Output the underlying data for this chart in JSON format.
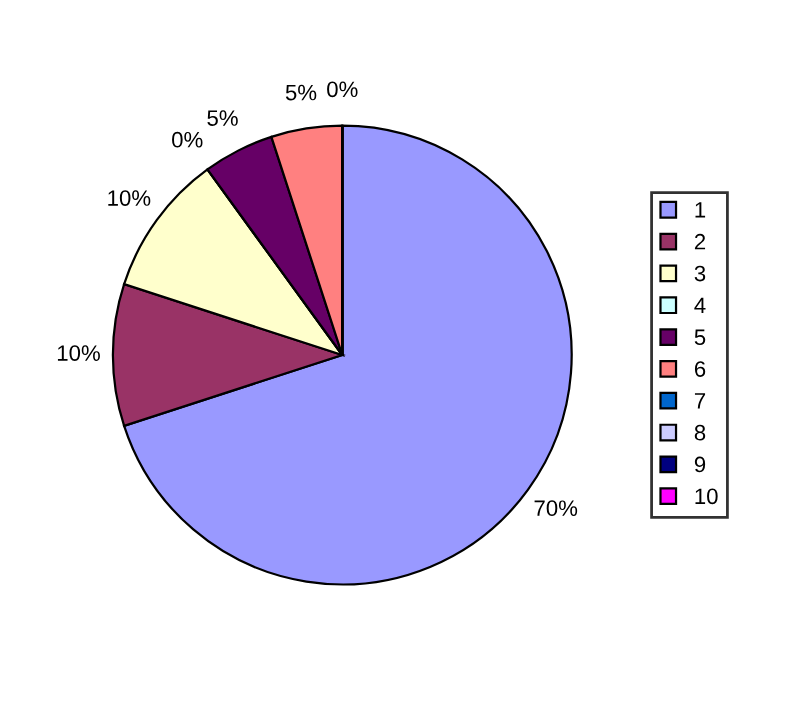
{
  "chart_data": {
    "type": "pie",
    "categories": [
      "1",
      "2",
      "3",
      "4",
      "5",
      "6",
      "7",
      "8",
      "9",
      "10"
    ],
    "values": [
      70,
      10,
      10,
      0,
      5,
      5,
      0,
      0,
      0,
      0
    ],
    "colors": [
      "#9999ff",
      "#993366",
      "#ffffcc",
      "#ccffff",
      "#660066",
      "#ff8080",
      "#0066cc",
      "#ccccff",
      "#000080",
      "#ff00ff"
    ],
    "value_labels": [
      "70%",
      "10%",
      "10%",
      "0%",
      "5%",
      "5%",
      "0%",
      null,
      null,
      null
    ],
    "legend": "right"
  }
}
